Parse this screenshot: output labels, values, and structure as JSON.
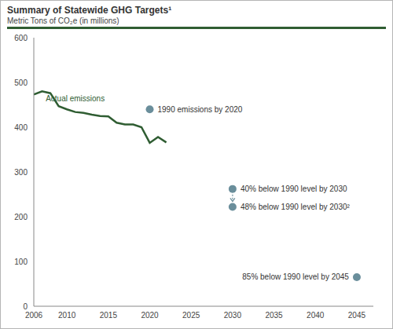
{
  "chart_data": {
    "type": "line",
    "title": "Summary of Statewide GHG Targets¹",
    "subtitle": "Metric Tons of CO₂e (in millions)",
    "series": [
      {
        "name": "Actual emissions",
        "color": "#2f5d32",
        "x": [
          2006,
          2007,
          2008,
          2009,
          2010,
          2011,
          2012,
          2013,
          2014,
          2015,
          2016,
          2017,
          2018,
          2019,
          2020,
          2021,
          2022
        ],
        "values": [
          473,
          480,
          476,
          447,
          440,
          434,
          432,
          428,
          425,
          424,
          410,
          406,
          406,
          400,
          365,
          378,
          366
        ]
      },
      {
        "type": "scatter",
        "color": "#6a8e9b",
        "marker": "circle",
        "x": [
          2020,
          2030,
          2030,
          2045
        ],
        "values": [
          440,
          262,
          222,
          65
        ],
        "labels": [
          "1990 emissions by 2020",
          "40% below 1990 level by 2030",
          "48% below 1990 level by 2030²",
          "85% below 1990 level by 2045"
        ]
      }
    ],
    "xlim": [
      2006,
      2047
    ],
    "xticks": [
      2006,
      2010,
      2015,
      2020,
      2025,
      2030,
      2035,
      2040,
      2045
    ],
    "ylim": [
      0,
      600
    ],
    "yticks": [
      0,
      100,
      200,
      300,
      400,
      500,
      600
    ],
    "grid": false
  }
}
